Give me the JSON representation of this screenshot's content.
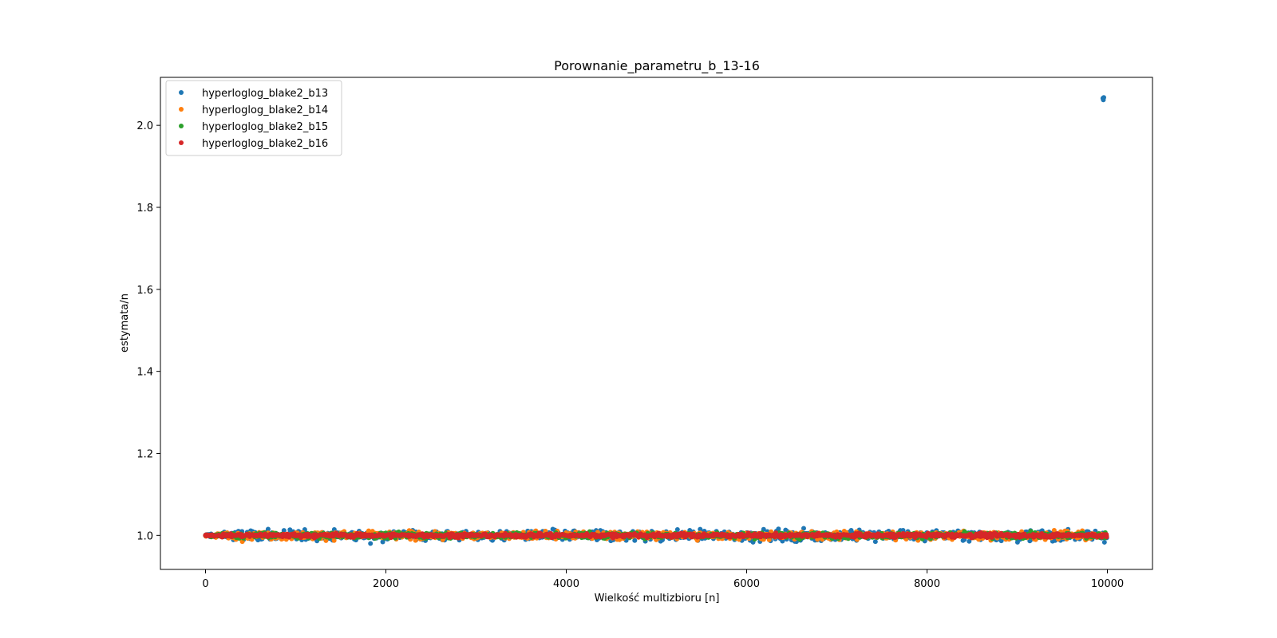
{
  "chart_data": {
    "type": "scatter",
    "title": "Porownanie_parametru_b_13-16",
    "xlabel": "Wielkość multizbioru [n]",
    "ylabel": "estymata/n",
    "xlim": [
      -500,
      10500
    ],
    "ylim": [
      0.917,
      2.117
    ],
    "x_ticks": [
      0,
      2000,
      4000,
      6000,
      8000,
      10000
    ],
    "y_ticks": [
      1.0,
      1.2,
      1.4,
      1.6,
      1.8,
      2.0
    ],
    "x_tick_labels": [
      "0",
      "2000",
      "4000",
      "6000",
      "8000",
      "10000"
    ],
    "y_tick_labels": [
      "1.0",
      "1.2",
      "1.4",
      "1.6",
      "1.8",
      "2.0"
    ],
    "grid": false,
    "legend_position": "top-left",
    "x_range": [
      1,
      10000
    ],
    "series": [
      {
        "name": "hyperloglog_blake2_b13",
        "color": "#1f77b4",
        "spread": 0.011,
        "max_dev": 0.035,
        "outliers": [
          [
            9950,
            2.066
          ],
          [
            9960,
            2.068
          ],
          [
            9955,
            2.062
          ]
        ]
      },
      {
        "name": "hyperloglog_blake2_b14",
        "color": "#ff7f0e",
        "spread": 0.008,
        "max_dev": 0.025,
        "outliers": []
      },
      {
        "name": "hyperloglog_blake2_b15",
        "color": "#2ca02c",
        "spread": 0.0055,
        "max_dev": 0.018,
        "outliers": []
      },
      {
        "name": "hyperloglog_blake2_b16",
        "color": "#d62728",
        "spread": 0.004,
        "max_dev": 0.012,
        "outliers": []
      }
    ]
  }
}
